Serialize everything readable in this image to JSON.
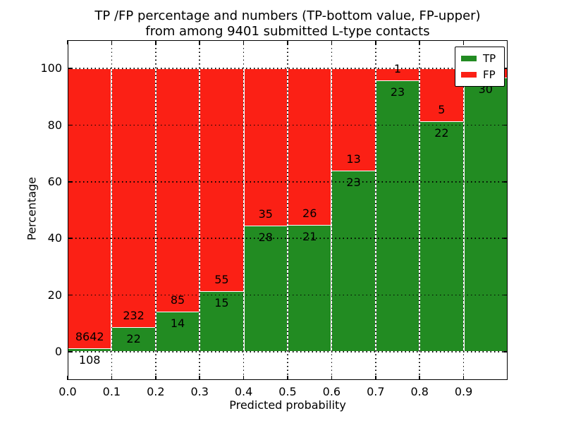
{
  "chart_data": {
    "type": "bar",
    "stacked": true,
    "unit": "percent",
    "title": "TP /FP percentage and numbers (TP-bottom value, FP-upper)",
    "subtitle": "from among 9401 submitted L-type contacts",
    "xlabel": "Predicted probability",
    "ylabel": "Percentage",
    "xlim": [
      0.0,
      1.0
    ],
    "ylim": [
      -10,
      110
    ],
    "xtick_labels": [
      "0.0",
      "0.1",
      "0.2",
      "0.3",
      "0.4",
      "0.5",
      "0.6",
      "0.7",
      "0.8",
      "0.9"
    ],
    "ytick_values": [
      0,
      20,
      40,
      60,
      80,
      100
    ],
    "ytick_labels": [
      "0",
      "20",
      "40",
      "60",
      "80",
      "100"
    ],
    "grid": "dotted",
    "legend": {
      "position": "upper-right",
      "items": [
        {
          "label": "TP",
          "color": "#228b22"
        },
        {
          "label": "FP",
          "color": "#fb2015"
        }
      ]
    },
    "colors": {
      "tp": "#228b22",
      "fp": "#fb2015",
      "bar_edge": "#ffffff",
      "grid": "#000000",
      "text": "#000000"
    },
    "bars": [
      {
        "bin": "0.0-0.1",
        "tp_label": "108",
        "fp_label": "8642",
        "tp_pct": 1.23
      },
      {
        "bin": "0.1-0.2",
        "tp_label": "22",
        "fp_label": "232",
        "tp_pct": 8.66
      },
      {
        "bin": "0.2-0.3",
        "tp_label": "14",
        "fp_label": "85",
        "tp_pct": 14.14
      },
      {
        "bin": "0.3-0.4",
        "tp_label": "15",
        "fp_label": "55",
        "tp_pct": 21.43
      },
      {
        "bin": "0.4-0.5",
        "tp_label": "28",
        "fp_label": "35",
        "tp_pct": 44.44
      },
      {
        "bin": "0.5-0.6",
        "tp_label": "21",
        "fp_label": "26",
        "tp_pct": 44.68
      },
      {
        "bin": "0.6-0.7",
        "tp_label": "23",
        "fp_label": "13",
        "tp_pct": 63.89
      },
      {
        "bin": "0.7-0.8",
        "tp_label": "23",
        "fp_label": "1",
        "tp_pct": 95.83
      },
      {
        "bin": "0.8-0.9",
        "tp_label": "22",
        "fp_label": "5",
        "tp_pct": 81.48
      },
      {
        "bin": "0.9-1.0",
        "tp_label": "30",
        "fp_label": "",
        "tp_pct": 96.77
      }
    ],
    "series": [
      {
        "name": "TP",
        "values": [
          108,
          22,
          14,
          15,
          28,
          21,
          23,
          23,
          22,
          30
        ]
      },
      {
        "name": "FP",
        "values": [
          8642,
          232,
          85,
          55,
          35,
          26,
          13,
          1,
          5,
          null
        ]
      }
    ]
  }
}
